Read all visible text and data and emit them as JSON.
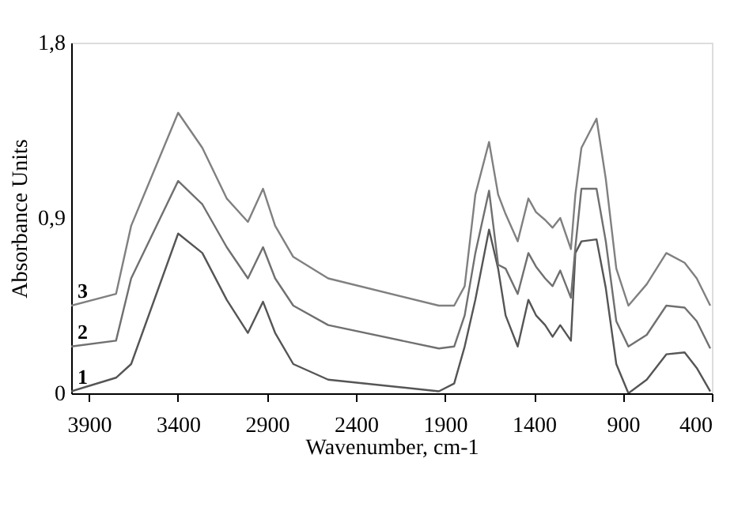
{
  "chart_data": {
    "type": "line",
    "xlabel": "Wavenumber, cm-1",
    "ylabel": "Absorbance Units",
    "x": [
      4000,
      3748,
      3663,
      3399,
      3263,
      3126,
      3007,
      2922,
      2854,
      2752,
      2556,
      1934,
      1848,
      1789,
      1729,
      1652,
      1601,
      1559,
      1491,
      1431,
      1388,
      1337,
      1295,
      1252,
      1192,
      1167,
      1133,
      1048,
      996,
      937,
      869,
      766,
      656,
      553,
      485,
      409
    ],
    "series": [
      {
        "name": "1",
        "color": "#555555",
        "values": [
          0.01,
          0.08,
          0.15,
          0.82,
          0.72,
          0.48,
          0.31,
          0.47,
          0.31,
          0.15,
          0.07,
          0.01,
          0.05,
          0.24,
          0.48,
          0.84,
          0.64,
          0.4,
          0.24,
          0.48,
          0.4,
          0.35,
          0.29,
          0.35,
          0.27,
          0.72,
          0.78,
          0.79,
          0.54,
          0.15,
          0.0,
          0.07,
          0.2,
          0.21,
          0.13,
          0.01
        ]
      },
      {
        "name": "2",
        "color": "#707070",
        "values": [
          0.24,
          0.27,
          0.59,
          1.09,
          0.97,
          0.75,
          0.59,
          0.75,
          0.59,
          0.45,
          0.35,
          0.23,
          0.24,
          0.4,
          0.72,
          1.04,
          0.66,
          0.64,
          0.51,
          0.72,
          0.65,
          0.59,
          0.55,
          0.63,
          0.49,
          0.75,
          1.05,
          1.05,
          0.78,
          0.37,
          0.24,
          0.3,
          0.45,
          0.44,
          0.37,
          0.23
        ]
      },
      {
        "name": "3",
        "color": "#808080",
        "values": [
          0.45,
          0.51,
          0.86,
          1.44,
          1.26,
          1.0,
          0.88,
          1.05,
          0.86,
          0.7,
          0.59,
          0.45,
          0.45,
          0.55,
          1.02,
          1.29,
          1.02,
          0.92,
          0.78,
          1.0,
          0.93,
          0.89,
          0.85,
          0.9,
          0.74,
          1.02,
          1.26,
          1.41,
          1.1,
          0.64,
          0.45,
          0.56,
          0.72,
          0.67,
          0.59,
          0.45
        ]
      }
    ],
    "xlim": [
      4000,
      400
    ],
    "xticks": [
      3900,
      3400,
      2900,
      2400,
      1900,
      1400,
      900,
      400
    ],
    "ylim": [
      0,
      1.8
    ],
    "yticks": [
      {
        "value": 0,
        "label": "0"
      },
      {
        "value": 0.9,
        "label": "0,9"
      },
      {
        "value": 1.8,
        "label": "1,8"
      }
    ],
    "grid": false,
    "legend": false,
    "marker": "none",
    "line_style": "solid"
  }
}
